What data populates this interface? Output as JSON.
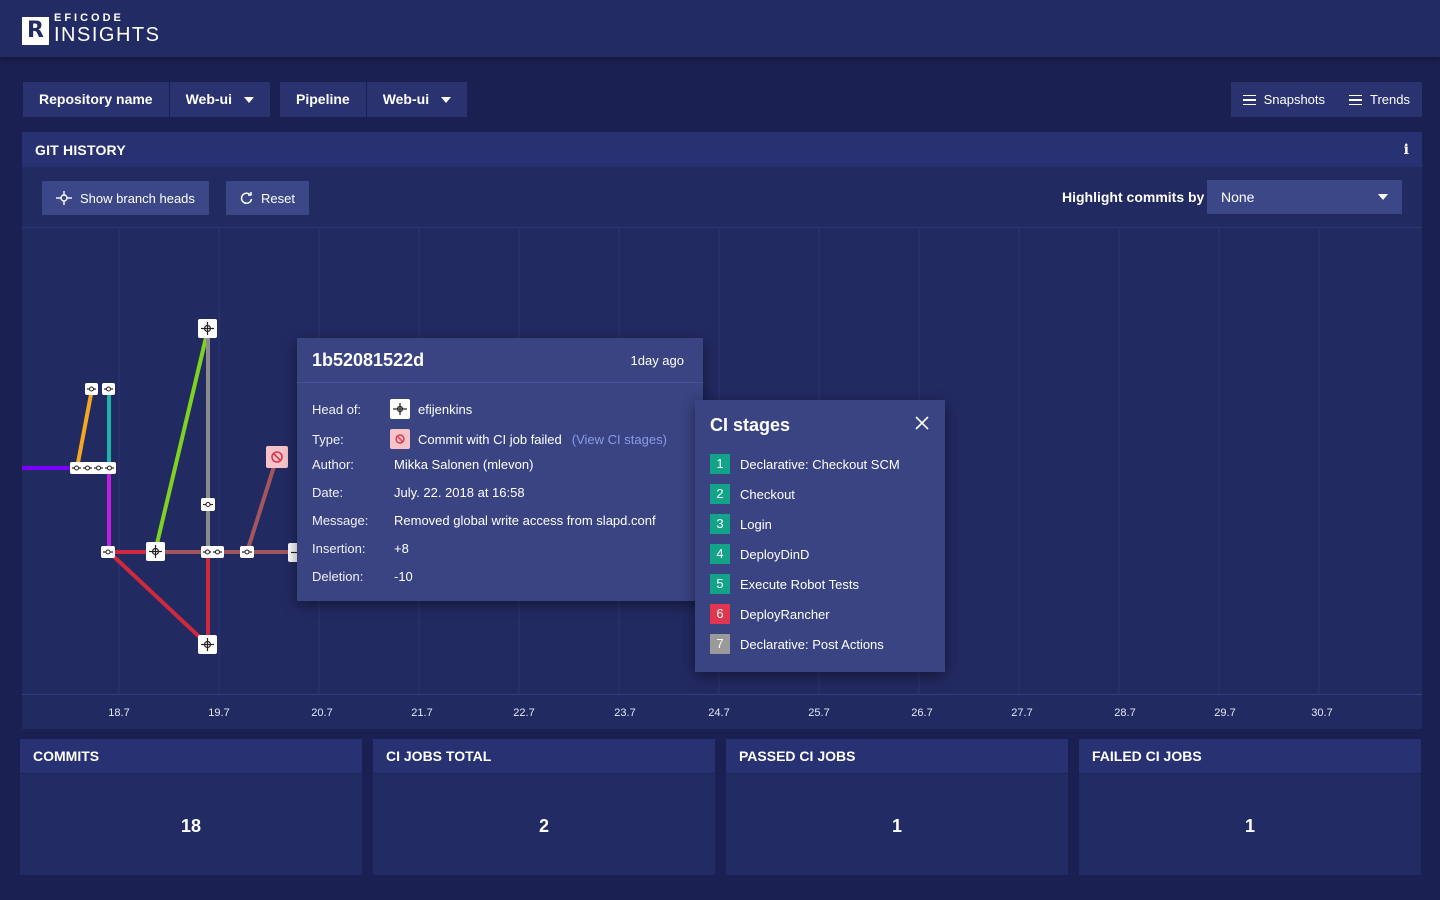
{
  "app": {
    "logo_top": "EFICODE",
    "logo_bottom": "INSIGHTS",
    "logo_mark": "R"
  },
  "filters": {
    "repository_label": "Repository name",
    "repository_value": "Web-ui",
    "pipeline_label": "Pipeline",
    "pipeline_value": "Web-ui"
  },
  "top_actions": {
    "snapshots": "Snapshots",
    "trends": "Trends"
  },
  "git_history": {
    "title": "GIT HISTORY",
    "show_branch_heads": "Show branch heads",
    "reset": "Reset",
    "highlight_label": "Highlight commits by",
    "highlight_value": "None",
    "x_ticks": [
      "18.7",
      "19.7",
      "20.7",
      "21.7",
      "22.7",
      "23.7",
      "24.7",
      "25.7",
      "26.7",
      "27.7",
      "28.7",
      "29.7",
      "30.7"
    ]
  },
  "commit_tooltip": {
    "hash": "1b52081522d",
    "ago": "1day ago",
    "head_of_label": "Head of:",
    "head_of_value": "efijenkins",
    "type_label": "Type:",
    "type_value": "Commit with CI job failed",
    "type_link": "(View CI stages)",
    "author_label": "Author:",
    "author_value": "Mikka Salonen (mlevon)",
    "date_label": "Date:",
    "date_value": "July. 22. 2018 at 16:58",
    "message_label": "Message:",
    "message_value": "Removed global write access from slapd.conf",
    "insertion_label": "Insertion:",
    "insertion_value": "+8",
    "deletion_label": "Deletion:",
    "deletion_value": "-10"
  },
  "ci_stages": {
    "title": "CI stages",
    "stages": [
      {
        "num": "1",
        "name": "Declarative: Checkout SCM",
        "status": "passed",
        "color": "#12a389"
      },
      {
        "num": "2",
        "name": "Checkout",
        "status": "passed",
        "color": "#12a389"
      },
      {
        "num": "3",
        "name": "Login",
        "status": "passed",
        "color": "#12a389"
      },
      {
        "num": "4",
        "name": "DeployDinD",
        "status": "passed",
        "color": "#12a389"
      },
      {
        "num": "5",
        "name": "Execute Robot Tests",
        "status": "passed",
        "color": "#12a389"
      },
      {
        "num": "6",
        "name": "DeployRancher",
        "status": "failed",
        "color": "#e0374f"
      },
      {
        "num": "7",
        "name": "Declarative: Post Actions",
        "status": "skipped",
        "color": "#9a9a9a"
      }
    ]
  },
  "stats": [
    {
      "label": "COMMITS",
      "value": "18"
    },
    {
      "label": "CI JOBS TOTAL",
      "value": "2"
    },
    {
      "label": "PASSED CI JOBS",
      "value": "1"
    },
    {
      "label": "FAILED CI JOBS",
      "value": "1"
    }
  ],
  "colors": {
    "background": "#1a2052",
    "panel": "#222a62",
    "popup": "#3a4483",
    "branch_purple": "#7a00ff",
    "branch_orange": "#f5a623",
    "branch_teal": "#1fb5a6",
    "branch_magenta": "#c21ee0",
    "branch_green": "#7ed321",
    "branch_gray": "#8c8c8c",
    "branch_red": "#d0283c",
    "branch_mauve": "#a4565e",
    "failed": "#e0374f",
    "passed": "#12a389",
    "link": "#8a9bea"
  },
  "icons": {
    "branch_head": "branch-icon",
    "failed_commit": "failed-ci-icon",
    "commit": "commit-node-icon",
    "info": "info-icon",
    "reset": "reset-icon",
    "close": "close-icon",
    "menu": "menu-icon",
    "dropdown": "chevron-down-icon"
  }
}
